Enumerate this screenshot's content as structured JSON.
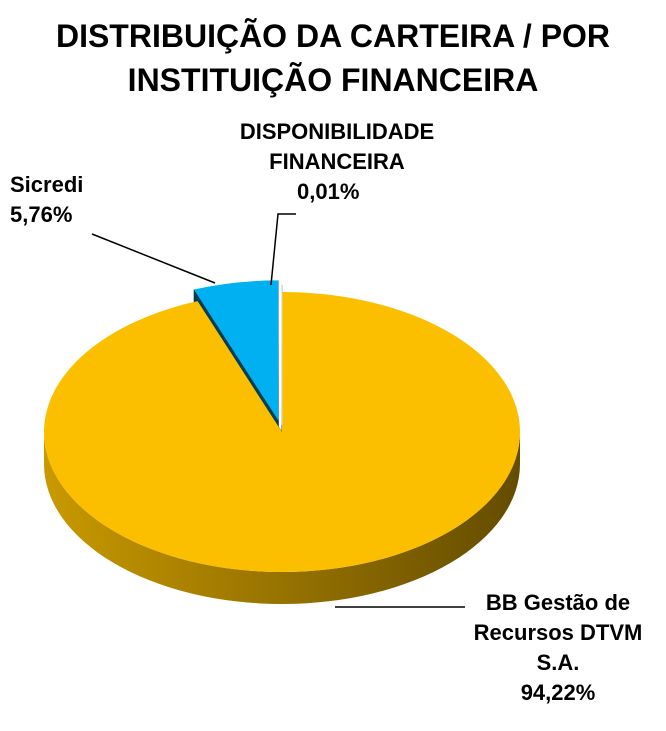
{
  "chart_data": {
    "type": "pie",
    "title": "DISTRIBUIÇÃO DA CARTEIRA / POR INSTITUIÇÃO FINANCEIRA",
    "categories": [
      "BB Gestão de Recursos DTVM S.A.",
      "Sicredi",
      "DISPONIBILIDADE FINANCEIRA"
    ],
    "values": [
      94.22,
      5.76,
      0.01
    ],
    "value_labels": [
      "94,22%",
      "5,76%",
      "0,01%"
    ],
    "colors": [
      "#fbbf00",
      "#00b0f0",
      "#ffffff"
    ]
  }
}
